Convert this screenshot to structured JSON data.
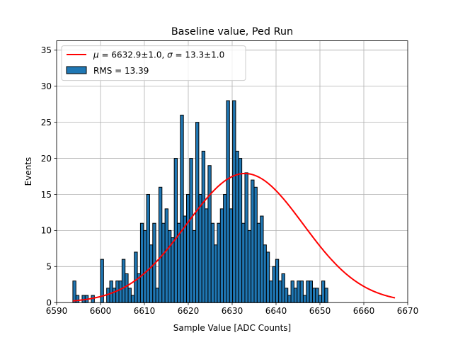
{
  "chart_data": {
    "type": "bar",
    "title": "Baseline value, Ped Run",
    "xlabel": "Sample Value [ADC Counts]",
    "ylabel": "Events",
    "xlim": [
      6590,
      6670
    ],
    "ylim": [
      0,
      36.3
    ],
    "xticks": [
      6590,
      6600,
      6610,
      6620,
      6630,
      6640,
      6650,
      6660,
      6670
    ],
    "yticks": [
      0,
      5,
      10,
      15,
      20,
      25,
      30,
      35
    ],
    "grid": true,
    "legend_position": "top-left",
    "histogram": {
      "name": "RMS = 13.39",
      "bin_start": 6593.7,
      "bin_width": 0.7,
      "values": [
        3,
        1,
        0,
        1,
        1,
        0,
        1,
        0,
        0,
        6,
        0,
        2,
        3,
        2,
        3,
        3,
        6,
        4,
        2,
        1,
        7,
        4,
        11,
        10,
        15,
        8,
        11,
        2,
        16,
        11,
        13,
        10,
        9,
        20,
        11,
        26,
        12,
        15,
        20,
        10,
        25,
        15,
        21,
        13,
        19,
        11,
        8,
        11,
        13,
        15,
        28,
        13,
        28,
        21,
        20,
        11,
        18,
        10,
        17,
        16,
        11,
        12,
        8,
        7,
        3,
        5,
        6,
        3,
        4,
        2,
        1,
        3,
        2,
        3,
        3,
        1,
        3,
        3,
        2,
        2,
        1,
        3,
        2,
        0,
        0
      ]
    },
    "fit": {
      "name": "$\\mu = $6632.9±1.0, $\\sigma = $13.3±1.0",
      "mu": 6632.9,
      "sigma": 13.3,
      "amplitude": 17.9,
      "x_range": [
        6593.7,
        6667.1
      ],
      "color": "#ff0000"
    },
    "legend": [
      {
        "kind": "line",
        "mu_symbol": "μ",
        "sigma_symbol": "σ",
        "mu_text": " = 6632.9±1.0, ",
        "sigma_text": " = 13.3±1.0",
        "color": "#ff0000"
      },
      {
        "kind": "patch",
        "label": "RMS = 13.39",
        "color": "#1f77b4"
      }
    ],
    "colors": {
      "bar": "#1f77b4",
      "bar_edge": "#000000",
      "fit": "#ff0000",
      "grid": "#b0b0b0"
    }
  }
}
